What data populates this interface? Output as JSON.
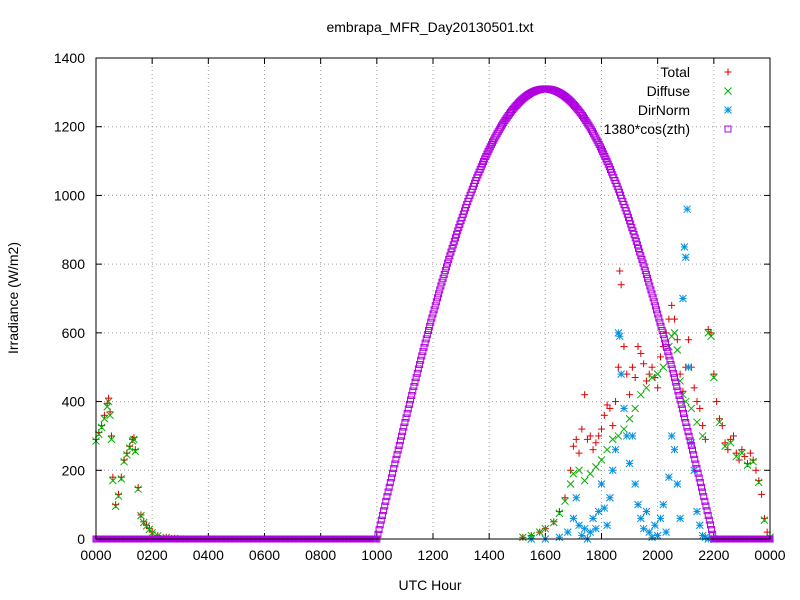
{
  "chart_data": {
    "type": "scatter",
    "title": "embrapa_MFR_Day20130501.txt",
    "xlabel": "UTC Hour",
    "ylabel": "Irradiance (W/m2)",
    "xlim": [
      0,
      24
    ],
    "ylim": [
      0,
      1400
    ],
    "grid": true,
    "legend_position": "top-right",
    "x_ticks": [
      {
        "value": 0,
        "label": "0000"
      },
      {
        "value": 2,
        "label": "0200"
      },
      {
        "value": 4,
        "label": "0400"
      },
      {
        "value": 6,
        "label": "0600"
      },
      {
        "value": 8,
        "label": "0800"
      },
      {
        "value": 10,
        "label": "1000"
      },
      {
        "value": 12,
        "label": "1200"
      },
      {
        "value": 14,
        "label": "1400"
      },
      {
        "value": 16,
        "label": "1600"
      },
      {
        "value": 18,
        "label": "1800"
      },
      {
        "value": 20,
        "label": "2000"
      },
      {
        "value": 22,
        "label": "2200"
      },
      {
        "value": 24,
        "label": "0000"
      }
    ],
    "y_ticks": [
      0,
      200,
      400,
      600,
      800,
      1000,
      1200,
      1400
    ],
    "series": [
      {
        "name": "Total",
        "marker": "plus",
        "color": "#e00000",
        "points": [
          [
            0.0,
            290
          ],
          [
            0.1,
            310
          ],
          [
            0.2,
            330
          ],
          [
            0.3,
            360
          ],
          [
            0.4,
            395
          ],
          [
            0.45,
            410
          ],
          [
            0.5,
            370
          ],
          [
            0.55,
            300
          ],
          [
            0.6,
            180
          ],
          [
            0.7,
            100
          ],
          [
            0.8,
            130
          ],
          [
            0.9,
            180
          ],
          [
            1.0,
            230
          ],
          [
            1.1,
            250
          ],
          [
            1.2,
            270
          ],
          [
            1.3,
            290
          ],
          [
            1.35,
            295
          ],
          [
            1.4,
            260
          ],
          [
            1.5,
            150
          ],
          [
            1.6,
            70
          ],
          [
            1.7,
            50
          ],
          [
            1.8,
            40
          ],
          [
            1.9,
            30
          ],
          [
            2.0,
            20
          ],
          [
            2.2,
            10
          ],
          [
            2.5,
            5
          ],
          [
            2.8,
            2
          ],
          [
            3.0,
            0
          ],
          [
            15.2,
            5
          ],
          [
            15.5,
            10
          ],
          [
            15.8,
            20
          ],
          [
            16.0,
            30
          ],
          [
            16.3,
            50
          ],
          [
            16.5,
            80
          ],
          [
            16.7,
            120
          ],
          [
            16.9,
            200
          ],
          [
            17.0,
            270
          ],
          [
            17.1,
            290
          ],
          [
            17.2,
            250
          ],
          [
            17.3,
            320
          ],
          [
            17.4,
            420
          ],
          [
            17.5,
            290
          ],
          [
            17.6,
            300
          ],
          [
            17.7,
            260
          ],
          [
            17.8,
            280
          ],
          [
            17.9,
            300
          ],
          [
            18.0,
            320
          ],
          [
            18.1,
            360
          ],
          [
            18.2,
            390
          ],
          [
            18.3,
            380
          ],
          [
            18.4,
            330
          ],
          [
            18.5,
            400
          ],
          [
            18.6,
            500
          ],
          [
            18.65,
            780
          ],
          [
            18.7,
            740
          ],
          [
            18.8,
            560
          ],
          [
            18.9,
            480
          ],
          [
            19.0,
            420
          ],
          [
            19.1,
            500
          ],
          [
            19.2,
            470
          ],
          [
            19.3,
            560
          ],
          [
            19.4,
            540
          ],
          [
            19.5,
            510
          ],
          [
            19.6,
            460
          ],
          [
            19.7,
            480
          ],
          [
            19.8,
            500
          ],
          [
            19.9,
            470
          ],
          [
            20.0,
            440
          ],
          [
            20.1,
            530
          ],
          [
            20.2,
            560
          ],
          [
            20.3,
            600
          ],
          [
            20.4,
            640
          ],
          [
            20.5,
            680
          ],
          [
            20.6,
            640
          ],
          [
            20.7,
            580
          ],
          [
            20.8,
            480
          ],
          [
            20.9,
            430
          ],
          [
            21.0,
            500
          ],
          [
            21.1,
            580
          ],
          [
            21.2,
            500
          ],
          [
            21.3,
            440
          ],
          [
            21.4,
            400
          ],
          [
            21.5,
            380
          ],
          [
            21.6,
            330
          ],
          [
            21.7,
            290
          ],
          [
            21.8,
            610
          ],
          [
            21.9,
            600
          ],
          [
            22.0,
            480
          ],
          [
            22.1,
            400
          ],
          [
            22.2,
            350
          ],
          [
            22.3,
            330
          ],
          [
            22.4,
            280
          ],
          [
            22.5,
            260
          ],
          [
            22.6,
            290
          ],
          [
            22.7,
            300
          ],
          [
            22.8,
            250
          ],
          [
            22.9,
            230
          ],
          [
            23.0,
            260
          ],
          [
            23.1,
            240
          ],
          [
            23.2,
            220
          ],
          [
            23.3,
            250
          ],
          [
            23.4,
            230
          ],
          [
            23.5,
            200
          ],
          [
            23.6,
            170
          ],
          [
            23.7,
            130
          ],
          [
            23.8,
            60
          ],
          [
            23.9,
            20
          ],
          [
            24.0,
            5
          ]
        ]
      },
      {
        "name": "Diffuse",
        "marker": "cross",
        "color": "#00b000",
        "points": [
          [
            0.0,
            285
          ],
          [
            0.1,
            305
          ],
          [
            0.2,
            325
          ],
          [
            0.3,
            350
          ],
          [
            0.4,
            385
          ],
          [
            0.45,
            400
          ],
          [
            0.5,
            360
          ],
          [
            0.55,
            290
          ],
          [
            0.6,
            170
          ],
          [
            0.7,
            95
          ],
          [
            0.8,
            125
          ],
          [
            0.9,
            175
          ],
          [
            1.0,
            225
          ],
          [
            1.1,
            245
          ],
          [
            1.2,
            265
          ],
          [
            1.3,
            285
          ],
          [
            1.35,
            290
          ],
          [
            1.4,
            255
          ],
          [
            1.5,
            145
          ],
          [
            1.6,
            68
          ],
          [
            1.7,
            48
          ],
          [
            1.8,
            38
          ],
          [
            1.9,
            28
          ],
          [
            2.0,
            18
          ],
          [
            2.2,
            9
          ],
          [
            2.5,
            4
          ],
          [
            2.8,
            1
          ],
          [
            3.0,
            0
          ],
          [
            15.2,
            5
          ],
          [
            15.5,
            10
          ],
          [
            15.8,
            20
          ],
          [
            16.0,
            30
          ],
          [
            16.3,
            48
          ],
          [
            16.5,
            75
          ],
          [
            16.7,
            110
          ],
          [
            16.9,
            160
          ],
          [
            17.0,
            190
          ],
          [
            17.2,
            200
          ],
          [
            17.4,
            170
          ],
          [
            17.6,
            190
          ],
          [
            17.8,
            210
          ],
          [
            18.0,
            230
          ],
          [
            18.2,
            260
          ],
          [
            18.4,
            290
          ],
          [
            18.6,
            300
          ],
          [
            18.8,
            320
          ],
          [
            19.0,
            350
          ],
          [
            19.2,
            380
          ],
          [
            19.4,
            420
          ],
          [
            19.6,
            440
          ],
          [
            19.8,
            470
          ],
          [
            20.0,
            480
          ],
          [
            20.2,
            500
          ],
          [
            20.4,
            560
          ],
          [
            20.5,
            590
          ],
          [
            20.6,
            600
          ],
          [
            20.7,
            550
          ],
          [
            20.8,
            460
          ],
          [
            20.9,
            420
          ],
          [
            21.0,
            400
          ],
          [
            21.2,
            380
          ],
          [
            21.4,
            340
          ],
          [
            21.6,
            300
          ],
          [
            21.8,
            600
          ],
          [
            21.9,
            590
          ],
          [
            22.0,
            470
          ],
          [
            22.2,
            340
          ],
          [
            22.4,
            270
          ],
          [
            22.6,
            280
          ],
          [
            22.8,
            240
          ],
          [
            23.0,
            250
          ],
          [
            23.2,
            215
          ],
          [
            23.4,
            225
          ],
          [
            23.6,
            165
          ],
          [
            23.8,
            55
          ],
          [
            24.0,
            5
          ]
        ]
      },
      {
        "name": "DirNorm",
        "marker": "star",
        "color": "#0090e0",
        "points": [
          [
            15.5,
            0
          ],
          [
            16.0,
            0
          ],
          [
            16.5,
            5
          ],
          [
            16.8,
            20
          ],
          [
            17.0,
            60
          ],
          [
            17.1,
            120
          ],
          [
            17.2,
            40
          ],
          [
            17.3,
            10
          ],
          [
            17.4,
            30
          ],
          [
            17.5,
            0
          ],
          [
            17.6,
            20
          ],
          [
            17.7,
            60
          ],
          [
            17.8,
            30
          ],
          [
            17.9,
            80
          ],
          [
            18.0,
            160
          ],
          [
            18.1,
            90
          ],
          [
            18.2,
            40
          ],
          [
            18.3,
            120
          ],
          [
            18.4,
            200
          ],
          [
            18.5,
            260
          ],
          [
            18.6,
            600
          ],
          [
            18.65,
            590
          ],
          [
            18.7,
            480
          ],
          [
            18.8,
            380
          ],
          [
            18.9,
            300
          ],
          [
            19.0,
            220
          ],
          [
            19.1,
            300
          ],
          [
            19.2,
            160
          ],
          [
            19.3,
            100
          ],
          [
            19.4,
            60
          ],
          [
            19.5,
            30
          ],
          [
            19.6,
            80
          ],
          [
            19.7,
            20
          ],
          [
            19.8,
            5
          ],
          [
            19.9,
            40
          ],
          [
            20.0,
            10
          ],
          [
            20.1,
            60
          ],
          [
            20.2,
            100
          ],
          [
            20.3,
            20
          ],
          [
            20.4,
            180
          ],
          [
            20.5,
            300
          ],
          [
            20.6,
            260
          ],
          [
            20.7,
            160
          ],
          [
            20.8,
            60
          ],
          [
            20.9,
            700
          ],
          [
            20.95,
            850
          ],
          [
            21.0,
            820
          ],
          [
            21.05,
            960
          ],
          [
            21.1,
            500
          ],
          [
            21.2,
            280
          ],
          [
            21.3,
            200
          ],
          [
            21.4,
            80
          ],
          [
            21.5,
            40
          ],
          [
            21.6,
            10
          ],
          [
            21.7,
            5
          ],
          [
            21.8,
            0
          ],
          [
            22.0,
            0
          ],
          [
            24.0,
            0
          ]
        ]
      },
      {
        "name": "1380*cos(zth)",
        "marker": "square",
        "color": "#b000e0",
        "function": {
          "expression": "1380*cos(zth)",
          "start": 10.0,
          "end": 22.0,
          "peak_x": 16.0,
          "peak_y": 1310,
          "zero_before": true,
          "zero_after": true
        }
      }
    ]
  }
}
